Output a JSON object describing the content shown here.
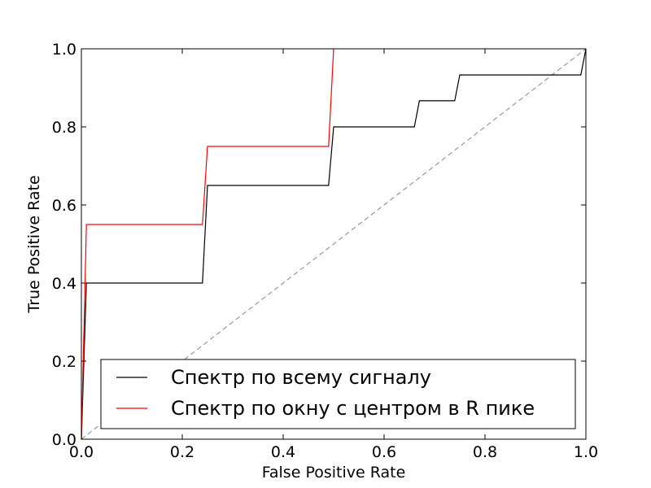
{
  "chart_data": {
    "type": "line",
    "title": "",
    "xlabel": "False Positive Rate",
    "ylabel": "True Positive Rate",
    "xlim": [
      0.0,
      1.0
    ],
    "ylim": [
      0.0,
      1.0
    ],
    "xticks": [
      "0.0",
      "0.2",
      "0.4",
      "0.6",
      "0.8",
      "1.0"
    ],
    "yticks": [
      "0.0",
      "0.2",
      "0.4",
      "0.6",
      "0.8",
      "1.0"
    ],
    "grid": false,
    "legend_position": "lower-right",
    "series": [
      {
        "name": "Спектр по всему сигналу",
        "color": "#000000",
        "style": "solid",
        "x": [
          0.0,
          0.01,
          0.24,
          0.25,
          0.49,
          0.5,
          0.66,
          0.67,
          0.74,
          0.75,
          0.99,
          1.0
        ],
        "y": [
          0.0,
          0.4,
          0.4,
          0.65,
          0.65,
          0.8,
          0.8,
          0.867,
          0.867,
          0.933,
          0.933,
          1.0
        ]
      },
      {
        "name": "Спектр по окну с центром в R пике",
        "color": "#ff0000",
        "style": "solid",
        "x": [
          0.0,
          0.01,
          0.24,
          0.25,
          0.49,
          0.5
        ],
        "y": [
          0.0,
          0.55,
          0.55,
          0.75,
          0.75,
          1.0
        ]
      },
      {
        "name": "",
        "color": "#999999",
        "style": "dashed",
        "x": [
          0.0,
          1.0
        ],
        "y": [
          0.0,
          1.0
        ]
      }
    ]
  }
}
